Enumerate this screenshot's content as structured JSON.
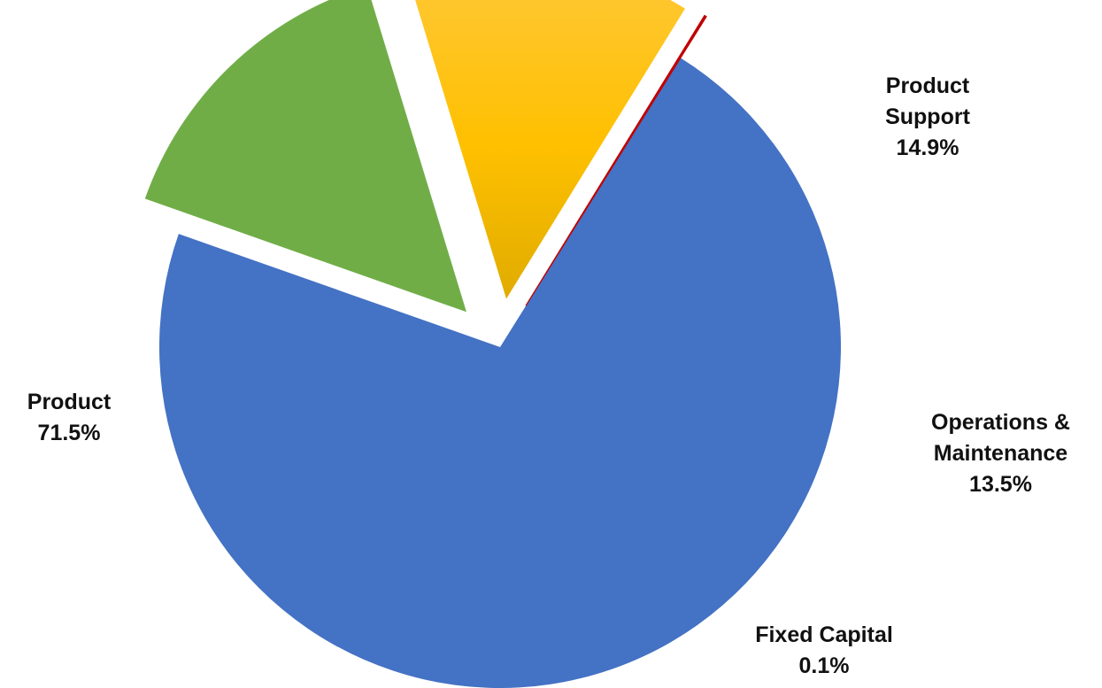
{
  "chart_data": {
    "type": "pie",
    "slices": [
      {
        "label": "Product",
        "value": 71.5,
        "value_label": "71.5%",
        "color": "#4472C4",
        "exploded": false
      },
      {
        "label": "Product Support",
        "value": 14.9,
        "value_label": "14.9%",
        "color": "#70AD47",
        "exploded": true
      },
      {
        "label": "Operations & Maintenance",
        "value": 13.5,
        "value_label": "13.5%",
        "color": "#FFC000",
        "exploded": true
      },
      {
        "label": "Fixed Capital",
        "value": 0.1,
        "value_label": "0.1%",
        "color": "#C00000",
        "exploded": true
      }
    ],
    "label_lines": {
      "product": [
        "Product"
      ],
      "product_support": [
        "Product",
        "Support"
      ],
      "operations": [
        "Operations &",
        "Maintenance"
      ],
      "fixed_capital": [
        "Fixed Capital"
      ]
    },
    "legend": false
  }
}
